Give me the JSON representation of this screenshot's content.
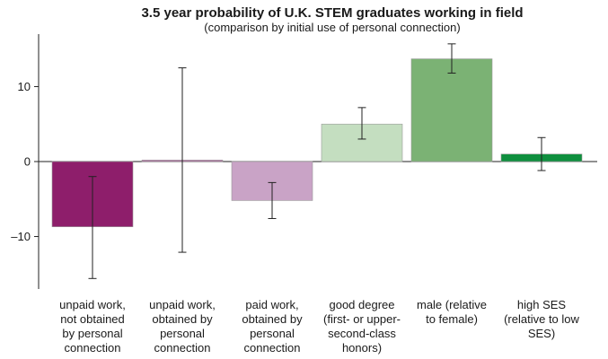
{
  "chart_data": {
    "type": "bar",
    "title": "3.5 year probability of U.K. STEM graduates working in field",
    "subtitle": "(comparison by initial use of personal connection)",
    "xlabel": "",
    "ylabel": "",
    "ylim": [
      -17,
      17
    ],
    "yticks": [
      -10,
      0,
      10
    ],
    "ytick_labels": [
      "–10",
      "0",
      "10"
    ],
    "grid": false,
    "categories": [
      [
        "unpaid work,",
        "not obtained",
        "by personal",
        "connection"
      ],
      [
        "unpaid work,",
        "obtained by",
        "personal",
        "connection"
      ],
      [
        "paid work,",
        "obtained by",
        "personal",
        "connection"
      ],
      [
        "good degree",
        "(first- or upper-",
        "second-class",
        "honors)"
      ],
      [
        "male (relative",
        "to female)"
      ],
      [
        "high SES",
        "(relative to low",
        "SES)"
      ]
    ],
    "values": [
      -8.7,
      0.2,
      -5.2,
      5.0,
      13.7,
      1.0
    ],
    "error_low": [
      -15.6,
      -12.1,
      -7.6,
      3.0,
      11.8,
      -1.2
    ],
    "error_high": [
      -2.0,
      12.5,
      -2.8,
      7.2,
      15.7,
      3.2
    ],
    "colors": [
      "#8e1e6b",
      "#b473a5",
      "#c9a3c6",
      "#c4dec0",
      "#7bb274",
      "#0f8f3e"
    ]
  }
}
